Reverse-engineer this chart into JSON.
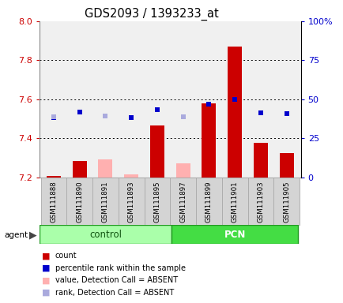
{
  "title": "GDS2093 / 1393233_at",
  "samples": [
    "GSM111888",
    "GSM111890",
    "GSM111891",
    "GSM111893",
    "GSM111895",
    "GSM111897",
    "GSM111899",
    "GSM111901",
    "GSM111903",
    "GSM111905"
  ],
  "ylim_left": [
    7.2,
    8.0
  ],
  "ylim_right": [
    0,
    100
  ],
  "yticks_left": [
    7.2,
    7.4,
    7.6,
    7.8,
    8.0
  ],
  "yticks_right": [
    0,
    25,
    50,
    75,
    100
  ],
  "bar_base": 7.2,
  "bar_values_red": [
    7.205,
    7.285,
    null,
    null,
    7.467,
    null,
    7.58,
    7.87,
    7.375,
    7.325
  ],
  "bar_values_pink": [
    null,
    null,
    7.29,
    7.215,
    null,
    7.27,
    null,
    null,
    null,
    null
  ],
  "rank_blue_dark": [
    7.505,
    7.535,
    null,
    7.505,
    7.545,
    null,
    7.575,
    7.6,
    7.53,
    7.525
  ],
  "rank_lavender": [
    7.51,
    null,
    7.515,
    null,
    null,
    7.51,
    null,
    null,
    null,
    null
  ],
  "bar_color_red": "#cc0000",
  "bar_color_pink": "#ffb0b0",
  "dot_color_blue": "#0000cc",
  "dot_color_lavender": "#aaaadd",
  "group_control_color": "#aaffaa",
  "group_pcn_color": "#44dd44",
  "axis_label_color_left": "#cc0000",
  "axis_label_color_right": "#0000cc",
  "bg_color": "#ffffff",
  "plot_bg_color": "#f0f0f0",
  "legend_items": [
    {
      "label": "count",
      "color": "#cc0000"
    },
    {
      "label": "percentile rank within the sample",
      "color": "#0000cc"
    },
    {
      "label": "value, Detection Call = ABSENT",
      "color": "#ffb0b0"
    },
    {
      "label": "rank, Detection Call = ABSENT",
      "color": "#aaaadd"
    }
  ]
}
